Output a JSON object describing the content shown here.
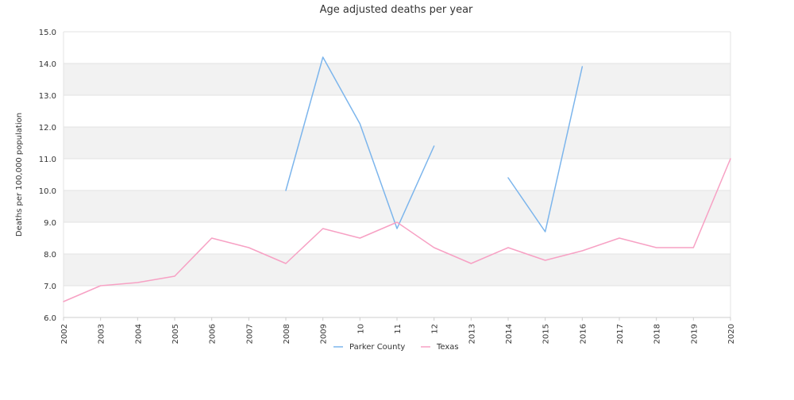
{
  "chart_data": {
    "type": "line",
    "title": "Age adjusted deaths per year",
    "xlabel": "",
    "ylabel": "Deaths per 100,000 population",
    "ylim": [
      6.0,
      15.0
    ],
    "y_ticks": [
      "6.0",
      "7.0",
      "8.0",
      "9.0",
      "10.0",
      "11.0",
      "12.0",
      "13.0",
      "14.0",
      "15.0"
    ],
    "categories": [
      "2002",
      "2003",
      "2004",
      "2005",
      "2006",
      "2007",
      "2008",
      "2009",
      "10",
      "11",
      "12",
      "2013",
      "2014",
      "2015",
      "2016",
      "2017",
      "2018",
      "2019",
      "2020"
    ],
    "grid": "horizontal alternating bands",
    "legend_position": "bottom",
    "series": [
      {
        "name": "Parker County",
        "color": "#7cb5ec",
        "values": [
          null,
          null,
          null,
          null,
          null,
          null,
          10.0,
          14.2,
          12.1,
          8.8,
          11.4,
          null,
          10.4,
          8.7,
          13.9,
          null,
          null,
          null,
          null
        ]
      },
      {
        "name": "Texas",
        "color": "#f7a1c4",
        "values": [
          6.5,
          7.0,
          7.1,
          7.3,
          8.5,
          8.2,
          7.7,
          8.8,
          8.5,
          9.0,
          8.2,
          7.7,
          8.2,
          7.8,
          8.1,
          8.5,
          8.2,
          8.2,
          11.0
        ]
      }
    ]
  }
}
